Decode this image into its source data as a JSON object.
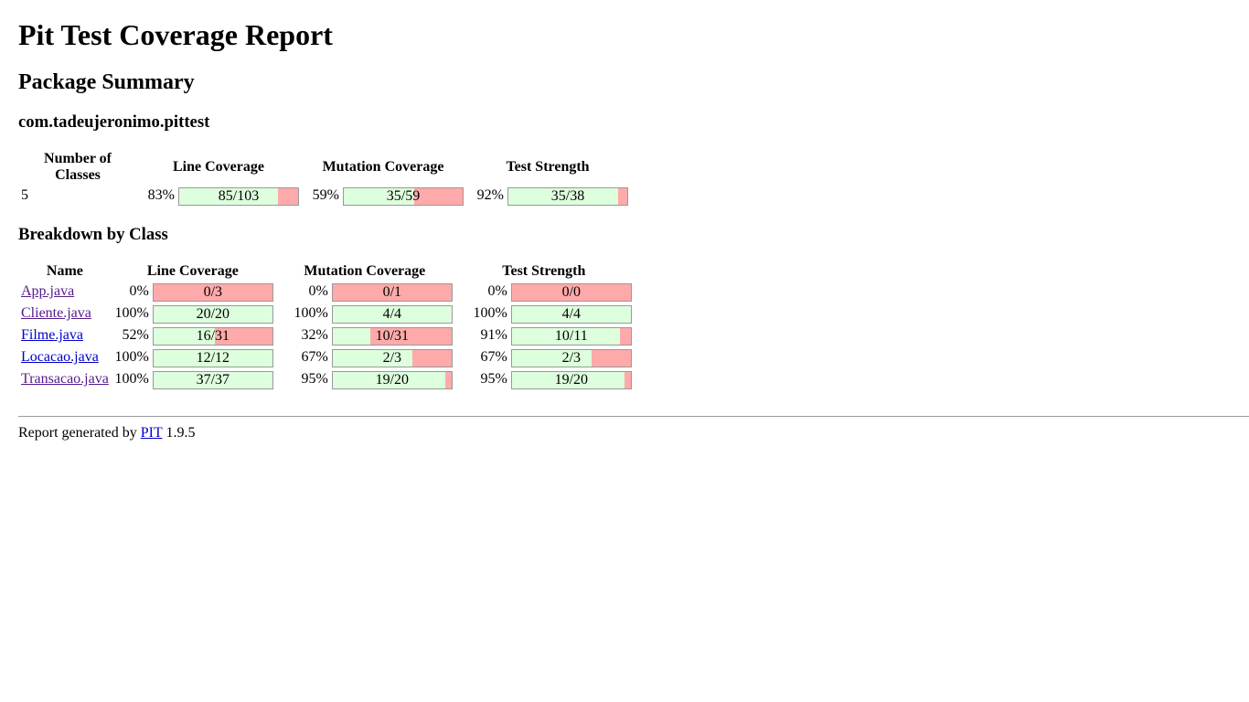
{
  "title": "Pit Test Coverage Report",
  "package_summary": {
    "heading": "Package Summary",
    "package_name": "com.tadeujeronimo.pittest",
    "headers": [
      "Number of Classes",
      "Line Coverage",
      "Mutation Coverage",
      "Test Strength"
    ],
    "classes": "5",
    "line": {
      "pct": "83%",
      "legend": "85/103",
      "fraction": 0.83
    },
    "mutation": {
      "pct": "59%",
      "legend": "35/59",
      "fraction": 0.59
    },
    "strength": {
      "pct": "92%",
      "legend": "35/38",
      "fraction": 0.92
    }
  },
  "breakdown": {
    "heading": "Breakdown by Class",
    "headers": [
      "Name",
      "Line Coverage",
      "Mutation Coverage",
      "Test Strength"
    ],
    "rows": [
      {
        "name": "App.java",
        "line": {
          "pct": "0%",
          "legend": "0/3",
          "fraction": 0
        },
        "mutation": {
          "pct": "0%",
          "legend": "0/1",
          "fraction": 0
        },
        "strength": {
          "pct": "0%",
          "legend": "0/0",
          "fraction": 0
        }
      },
      {
        "name": "Cliente.java",
        "line": {
          "pct": "100%",
          "legend": "20/20",
          "fraction": 1
        },
        "mutation": {
          "pct": "100%",
          "legend": "4/4",
          "fraction": 1
        },
        "strength": {
          "pct": "100%",
          "legend": "4/4",
          "fraction": 1
        }
      },
      {
        "name": "Filme.java",
        "line": {
          "pct": "52%",
          "legend": "16/31",
          "fraction": 0.52
        },
        "mutation": {
          "pct": "32%",
          "legend": "10/31",
          "fraction": 0.32
        },
        "strength": {
          "pct": "91%",
          "legend": "10/11",
          "fraction": 0.91
        }
      },
      {
        "name": "Locacao.java",
        "line": {
          "pct": "100%",
          "legend": "12/12",
          "fraction": 1
        },
        "mutation": {
          "pct": "67%",
          "legend": "2/3",
          "fraction": 0.67
        },
        "strength": {
          "pct": "67%",
          "legend": "2/3",
          "fraction": 0.67
        }
      },
      {
        "name": "Transacao.java",
        "line": {
          "pct": "100%",
          "legend": "37/37",
          "fraction": 1
        },
        "mutation": {
          "pct": "95%",
          "legend": "19/20",
          "fraction": 0.95
        },
        "strength": {
          "pct": "95%",
          "legend": "19/20",
          "fraction": 0.95
        }
      }
    ]
  },
  "footer": {
    "prefix": "Report generated by",
    "link_label": "PIT",
    "version": "1.9.5"
  }
}
